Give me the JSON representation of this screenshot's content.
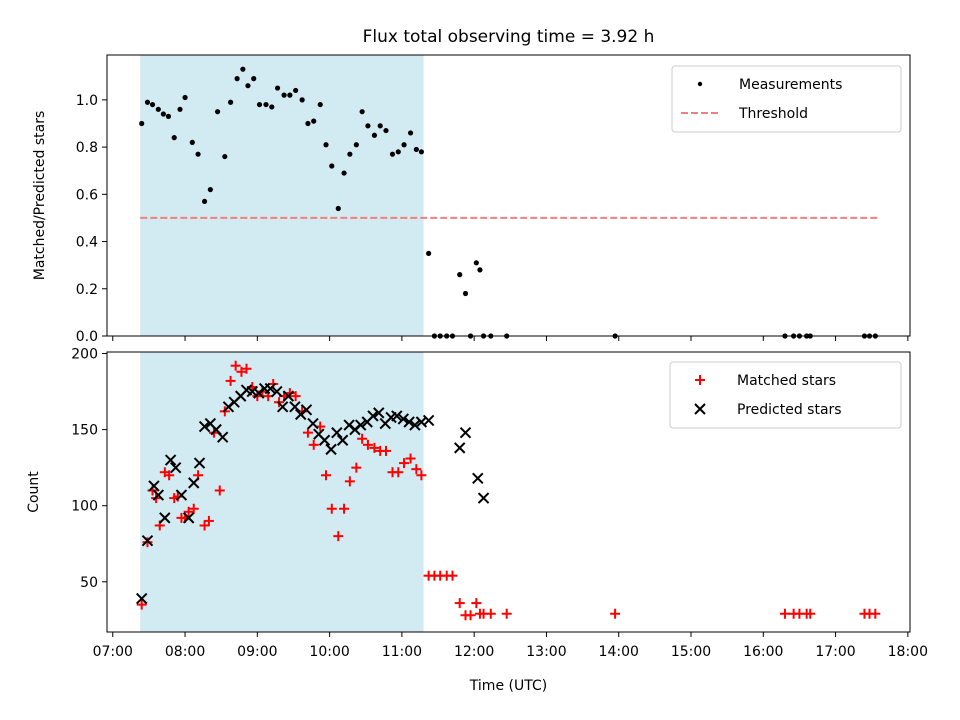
{
  "colors": {
    "shade": "#add8e6",
    "threshold": "#f08080",
    "matched": "#ff0000",
    "predicted": "#000000",
    "measurement": "#000000"
  },
  "chart_data": [
    {
      "type": "scatter",
      "title": "Flux total observing time = 3.92 h",
      "xlabel": "",
      "ylabel": "Matched/Predicted stars",
      "xlim": [
        6.92,
        18.03
      ],
      "ylim": [
        0,
        1.19
      ],
      "yticks": [
        0.0,
        0.2,
        0.4,
        0.6,
        0.8,
        1.0
      ],
      "ytick_labels": [
        "0.0",
        "0.2",
        "0.4",
        "0.6",
        "0.8",
        "1.0"
      ],
      "shaded_span": [
        7.38,
        11.3
      ],
      "legend": {
        "placement": "top-right",
        "entries": [
          "Measurements",
          "Threshold"
        ]
      },
      "threshold": {
        "name": "Threshold",
        "y": 0.5,
        "x": [
          7.38,
          17.6
        ]
      },
      "series": [
        {
          "name": "Measurements",
          "marker": "dot",
          "x": [
            7.4,
            7.48,
            7.55,
            7.63,
            7.7,
            7.77,
            7.85,
            7.93,
            8.0,
            8.1,
            8.18,
            8.27,
            8.35,
            8.45,
            8.55,
            8.63,
            8.72,
            8.8,
            8.87,
            8.95,
            9.03,
            9.12,
            9.2,
            9.28,
            9.37,
            9.45,
            9.53,
            9.62,
            9.7,
            9.78,
            9.87,
            9.95,
            10.03,
            10.12,
            10.2,
            10.28,
            10.37,
            10.45,
            10.53,
            10.62,
            10.7,
            10.78,
            10.87,
            10.95,
            11.03,
            11.12,
            11.2,
            11.27,
            11.37,
            11.45,
            11.53,
            11.62,
            11.7,
            11.8,
            11.88,
            11.95,
            12.03,
            12.08,
            12.13,
            12.23,
            12.45,
            13.95,
            16.3,
            16.42,
            16.5,
            16.6,
            16.65,
            17.4,
            17.47,
            17.55
          ],
          "y": [
            0.9,
            0.99,
            0.98,
            0.96,
            0.94,
            0.93,
            0.84,
            0.96,
            1.01,
            0.82,
            0.77,
            0.57,
            0.62,
            0.95,
            0.76,
            0.99,
            1.09,
            1.13,
            1.06,
            1.09,
            0.98,
            0.98,
            0.97,
            1.05,
            1.02,
            1.02,
            1.04,
            1.0,
            0.9,
            0.91,
            0.98,
            0.81,
            0.72,
            0.54,
            0.69,
            0.77,
            0.81,
            0.95,
            0.89,
            0.85,
            0.89,
            0.87,
            0.77,
            0.78,
            0.81,
            0.86,
            0.79,
            0.78,
            0.35,
            0.0,
            0.0,
            0.0,
            0.0,
            0.26,
            0.18,
            0.0,
            0.31,
            0.28,
            0.0,
            0.0,
            0.0,
            0.0,
            0.0,
            0.0,
            0.0,
            0.0,
            0.0,
            0.0,
            0.0,
            0.0
          ]
        }
      ]
    },
    {
      "type": "scatter",
      "title": "",
      "xlabel": "Time (UTC)",
      "ylabel": "Count",
      "xlim": [
        6.92,
        18.03
      ],
      "ylim": [
        17,
        201
      ],
      "yticks": [
        50,
        100,
        150,
        200
      ],
      "ytick_labels": [
        "50",
        "100",
        "150",
        "200"
      ],
      "xticks": [
        7,
        8,
        9,
        10,
        11,
        12,
        13,
        14,
        15,
        16,
        17,
        18
      ],
      "xtick_labels": [
        "07:00",
        "08:00",
        "09:00",
        "10:00",
        "11:00",
        "12:00",
        "13:00",
        "14:00",
        "15:00",
        "16:00",
        "17:00",
        "18:00"
      ],
      "shaded_span": [
        7.38,
        11.3
      ],
      "legend": {
        "placement": "top-right",
        "entries": [
          "Matched stars",
          "Predicted stars"
        ]
      },
      "series": [
        {
          "name": "Matched stars",
          "marker": "plus",
          "x": [
            7.4,
            7.48,
            7.55,
            7.6,
            7.65,
            7.72,
            7.78,
            7.85,
            7.9,
            7.95,
            8.0,
            8.05,
            8.12,
            8.18,
            8.27,
            8.33,
            8.4,
            8.48,
            8.55,
            8.63,
            8.7,
            8.78,
            8.85,
            8.93,
            9.0,
            9.07,
            9.15,
            9.22,
            9.3,
            9.37,
            9.45,
            9.53,
            9.62,
            9.7,
            9.78,
            9.87,
            9.95,
            10.03,
            10.12,
            10.2,
            10.28,
            10.37,
            10.45,
            10.53,
            10.62,
            10.7,
            10.78,
            10.87,
            10.95,
            11.03,
            11.12,
            11.2,
            11.27,
            11.37,
            11.45,
            11.53,
            11.62,
            11.7,
            11.8,
            11.88,
            11.95,
            12.03,
            12.08,
            12.13,
            12.23,
            12.45,
            13.95,
            16.3,
            16.42,
            16.5,
            16.6,
            16.65,
            17.4,
            17.47,
            17.55
          ],
          "y": [
            35,
            76,
            110,
            105,
            87,
            122,
            120,
            105,
            106,
            92,
            92,
            96,
            98,
            120,
            87,
            90,
            148,
            110,
            162,
            182,
            192,
            188,
            190,
            178,
            172,
            175,
            172,
            180,
            168,
            172,
            174,
            172,
            162,
            148,
            140,
            152,
            120,
            98,
            80,
            98,
            116,
            125,
            144,
            140,
            138,
            136,
            136,
            122,
            122,
            128,
            131,
            124,
            120,
            54,
            54,
            54,
            54,
            54,
            36,
            28,
            28,
            36,
            29,
            29,
            29,
            29,
            29,
            29,
            29,
            29,
            29,
            29,
            29,
            29,
            29
          ]
        },
        {
          "name": "Predicted stars",
          "marker": "x",
          "x": [
            7.4,
            7.48,
            7.57,
            7.63,
            7.72,
            7.8,
            7.87,
            7.95,
            8.05,
            8.12,
            8.2,
            8.27,
            8.35,
            8.43,
            8.52,
            8.6,
            8.68,
            8.77,
            8.85,
            8.93,
            9.02,
            9.1,
            9.18,
            9.27,
            9.35,
            9.43,
            9.52,
            9.6,
            9.68,
            9.77,
            9.85,
            9.93,
            10.02,
            10.1,
            10.18,
            10.27,
            10.35,
            10.43,
            10.52,
            10.6,
            10.68,
            10.77,
            10.85,
            10.93,
            11.02,
            11.1,
            11.18,
            11.27,
            11.37,
            11.8,
            11.88,
            12.05,
            12.13
          ],
          "y": [
            39,
            77,
            113,
            107,
            92,
            130,
            125,
            107,
            92,
            115,
            128,
            152,
            154,
            150,
            145,
            165,
            168,
            172,
            176,
            175,
            174,
            177,
            177,
            175,
            165,
            172,
            165,
            160,
            163,
            154,
            147,
            143,
            137,
            148,
            143,
            153,
            150,
            153,
            155,
            159,
            161,
            154,
            158,
            159,
            157,
            155,
            153,
            155,
            156,
            138,
            148,
            118,
            105
          ]
        }
      ]
    }
  ]
}
